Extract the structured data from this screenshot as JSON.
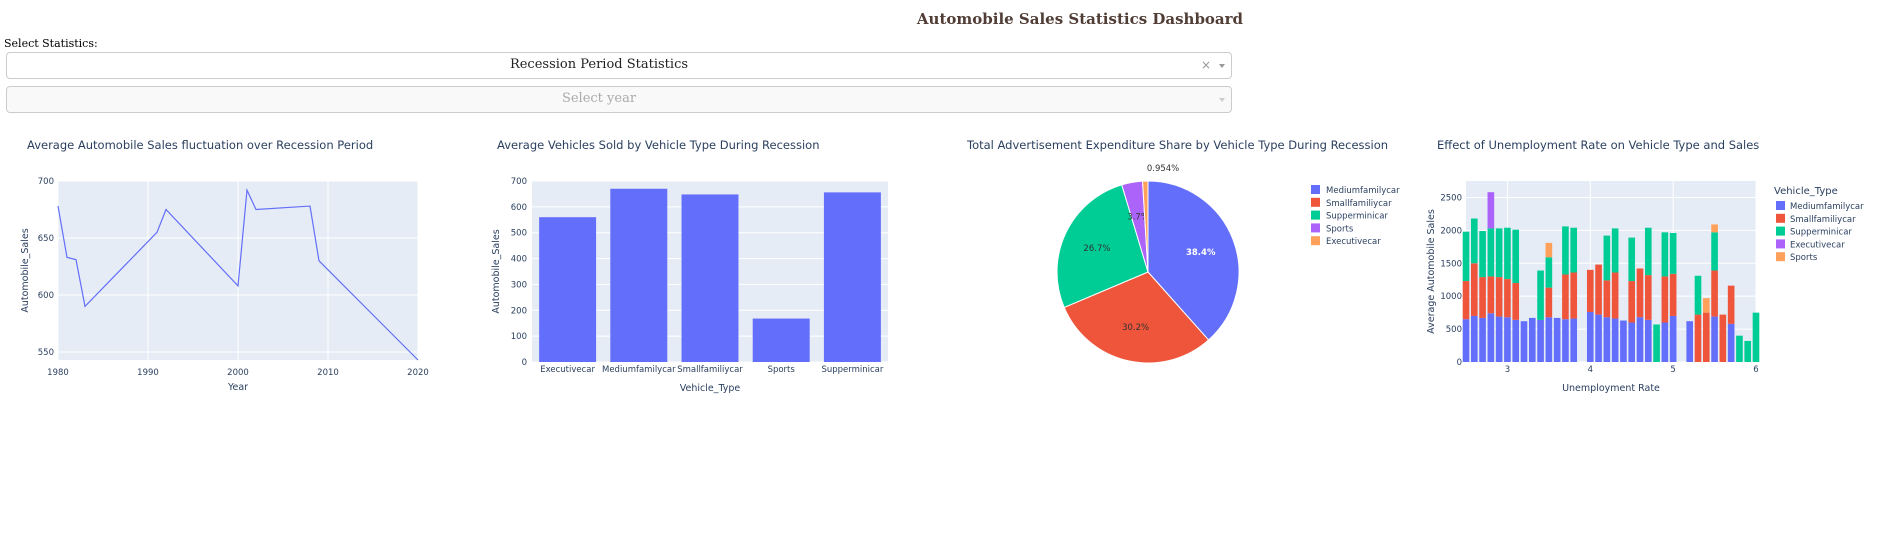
{
  "dashboard": {
    "title": "Automobile Sales Statistics Dashboard"
  },
  "controls": {
    "statistics_label": "Select Statistics:",
    "statistics_value": "Recession Period Statistics",
    "clear_symbol": "×",
    "year_placeholder": "Select year"
  },
  "colors": {
    "accent": "#636efa",
    "plot_bg": "#e5ecf6",
    "title": "#503d36"
  },
  "chart_data": [
    {
      "type": "line",
      "title": "Average Automobile Sales fluctuation over Recession Period",
      "xlabel": "Year",
      "ylabel": "Automobile_Sales",
      "x": [
        1980,
        1981,
        1982,
        1983,
        1991,
        1992,
        2000,
        2001,
        2002,
        2008,
        2009,
        2020
      ],
      "y": [
        678,
        633,
        631,
        590,
        655,
        675,
        608,
        692,
        675,
        678,
        630,
        543
      ],
      "xlim": [
        1980,
        2020
      ],
      "ylim": [
        543,
        700
      ],
      "xticks": [
        1980,
        1990,
        2000,
        2010,
        2020
      ],
      "yticks": [
        550,
        600,
        650,
        700
      ]
    },
    {
      "type": "bar",
      "title": "Average Vehicles Sold by Vehicle Type During Recession",
      "xlabel": "Vehicle_Type",
      "ylabel": "Automobile_Sales",
      "categories": [
        "Executivecar",
        "Mediumfamilycar",
        "Smallfamiliycar",
        "Sports",
        "Supperminicar"
      ],
      "values": [
        560,
        670,
        648,
        168,
        656
      ],
      "ylim": [
        0,
        700
      ],
      "yticks": [
        0,
        100,
        200,
        300,
        400,
        500,
        600,
        700
      ]
    },
    {
      "type": "pie",
      "title": "Total Advertisement Expenditure Share by Vehicle Type During Recession",
      "labels": [
        "Mediumfamilycar",
        "Smallfamiliycar",
        "Supperminicar",
        "Sports",
        "Executivecar"
      ],
      "values": [
        38.4,
        30.2,
        26.7,
        3.7,
        0.954
      ],
      "percent_labels": [
        "38.4%",
        "30.2%",
        "26.7%",
        "3.7%",
        "0.954%"
      ],
      "colors": [
        "#636efa",
        "#ef553b",
        "#00cc96",
        "#ab63fa",
        "#ffa15a"
      ],
      "legend": "right"
    },
    {
      "type": "bar",
      "stacked": true,
      "title": "Effect of Unemployment Rate on Vehicle Type and Sales",
      "xlabel": "Unemployment Rate",
      "ylabel": "Average Automobile Sales",
      "legend_title": "Vehicle_Type",
      "xlim": [
        2.5,
        6.0
      ],
      "ylim": [
        0,
        2750
      ],
      "xticks": [
        3,
        4,
        5,
        6
      ],
      "yticks": [
        0,
        500,
        1000,
        1500,
        2000,
        2500
      ],
      "series": [
        {
          "name": "Mediumfamilycar",
          "color": "#636efa",
          "x": [
            2.5,
            2.6,
            2.7,
            2.8,
            2.9,
            3.0,
            3.1,
            3.2,
            3.3,
            3.4,
            3.5,
            3.6,
            3.7,
            3.8,
            4.0,
            4.1,
            4.2,
            4.3,
            4.4,
            4.5,
            4.6,
            4.7,
            4.9,
            5.0,
            5.2,
            5.5,
            5.7
          ],
          "y": [
            650,
            700,
            670,
            740,
            690,
            680,
            640,
            620,
            670,
            640,
            680,
            670,
            650,
            660,
            760,
            720,
            680,
            660,
            630,
            600,
            680,
            640,
            600,
            700,
            620,
            690,
            580
          ]
        },
        {
          "name": "Smallfamiliycar",
          "color": "#ef553b",
          "x": [
            2.5,
            2.6,
            2.7,
            2.8,
            2.9,
            3.0,
            3.1,
            3.5,
            3.7,
            3.8,
            4.0,
            4.1,
            4.2,
            4.3,
            4.5,
            4.6,
            4.7,
            4.9,
            5.0,
            5.3,
            5.4,
            5.5,
            5.6,
            5.7
          ],
          "y": [
            580,
            800,
            620,
            560,
            600,
            580,
            560,
            450,
            680,
            700,
            640,
            760,
            560,
            700,
            630,
            740,
            680,
            700,
            640,
            720,
            750,
            700,
            720,
            580
          ]
        },
        {
          "name": "Supperminicar",
          "color": "#00cc96",
          "x": [
            2.5,
            2.6,
            2.7,
            2.8,
            2.9,
            3.0,
            3.1,
            3.4,
            3.5,
            3.7,
            3.8,
            4.2,
            4.3,
            4.5,
            4.7,
            4.8,
            4.9,
            5.0,
            5.3,
            5.5,
            5.8,
            5.9,
            6.0
          ],
          "y": [
            750,
            680,
            700,
            730,
            740,
            780,
            810,
            750,
            460,
            730,
            680,
            680,
            670,
            660,
            720,
            570,
            670,
            620,
            590,
            580,
            400,
            320,
            750
          ]
        },
        {
          "name": "Executivecar",
          "color": "#ab63fa",
          "x": [
            2.8
          ],
          "y": [
            550
          ]
        },
        {
          "name": "Sports",
          "color": "#ffa15a",
          "x": [
            3.5,
            5.4,
            5.5
          ],
          "y": [
            220,
            220,
            120
          ]
        }
      ]
    }
  ]
}
